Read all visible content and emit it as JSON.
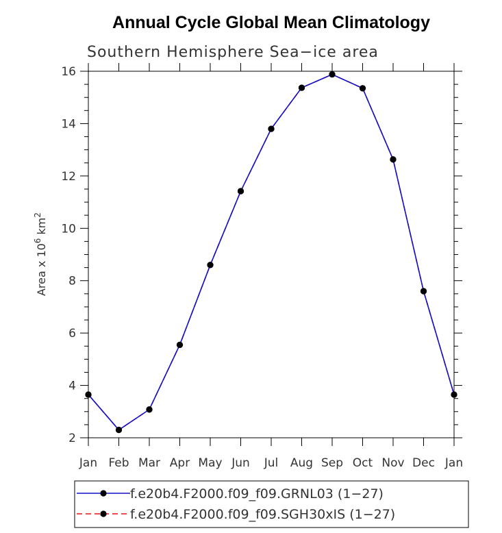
{
  "chart_data": {
    "type": "line",
    "title": "Annual Cycle Global Mean Climatology",
    "subtitle": "Southern Hemisphere Sea−ice area",
    "ylabel_main": "Area x 10",
    "ylabel_exp1": "6",
    "ylabel_mid": " km",
    "ylabel_exp2": "2",
    "xlabel": "",
    "categories": [
      "Jan",
      "Feb",
      "Mar",
      "Apr",
      "May",
      "Jun",
      "Jul",
      "Aug",
      "Sep",
      "Oct",
      "Nov",
      "Dec",
      "Jan"
    ],
    "ylim": [
      2,
      16
    ],
    "yticks": [
      2,
      4,
      6,
      8,
      10,
      12,
      14,
      16
    ],
    "grid": false,
    "legend_position": "bottom",
    "series": [
      {
        "name": "f.e20b4.F2000.f09_f09.GRNL03 (1−27)",
        "color": "#1010c8",
        "dash": "solid",
        "marker": "dot",
        "values": [
          3.65,
          2.3,
          3.08,
          5.55,
          8.6,
          11.42,
          13.8,
          15.37,
          15.88,
          15.35,
          12.63,
          7.6,
          3.65
        ]
      },
      {
        "name": "f.e20b4.F2000.f09_f09.SGH30xIS (1−27)",
        "color": "#e81010",
        "dash": "dashed",
        "marker": "dot",
        "values": [
          3.65,
          2.3,
          3.08,
          5.55,
          8.6,
          11.42,
          13.8,
          15.37,
          15.88,
          15.35,
          12.63,
          7.6,
          3.65
        ]
      }
    ]
  }
}
